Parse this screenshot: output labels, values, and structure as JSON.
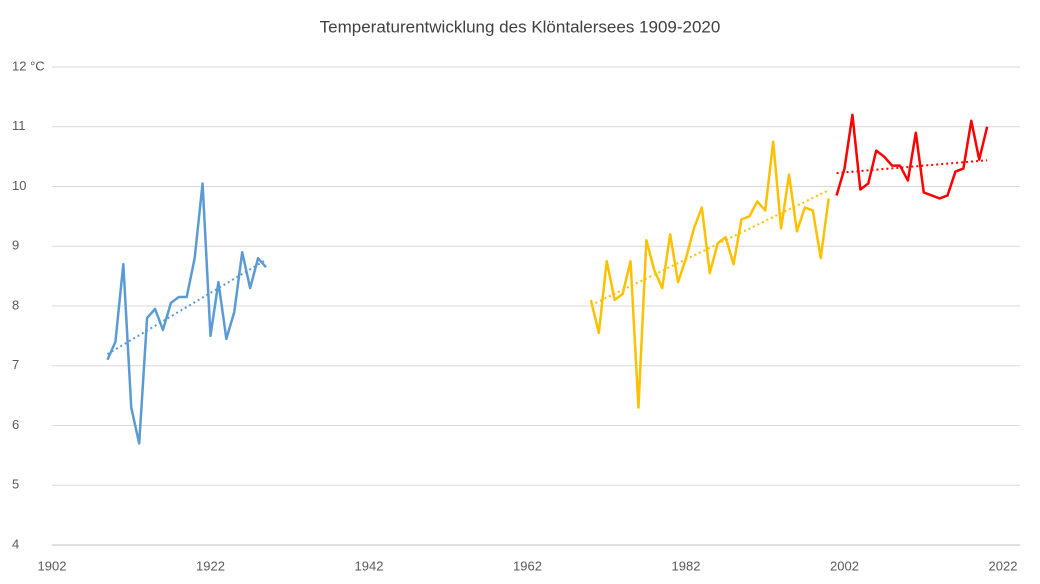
{
  "chart_data": {
    "type": "line",
    "title": "Temperaturentwicklung des Klöntalersees 1909-2020",
    "xlim": [
      1902,
      2022
    ],
    "xticks": [
      1902,
      1922,
      1942,
      1962,
      1982,
      2002,
      2022
    ],
    "ylim": [
      4,
      12
    ],
    "yticks": [
      4,
      5,
      6,
      7,
      8,
      9,
      10,
      11,
      {
        "value": 12,
        "label": "12 °C"
      }
    ],
    "grid": true,
    "trendline": true,
    "series": [
      {
        "color": "#5b9bd5",
        "x": [
          1909,
          1910,
          1911,
          1912,
          1913,
          1914,
          1915,
          1916,
          1917,
          1918,
          1919,
          1920,
          1921,
          1922,
          1923,
          1924,
          1925,
          1926,
          1927,
          1928,
          1929
        ],
        "values": [
          7.1,
          7.4,
          8.7,
          6.3,
          5.7,
          7.8,
          7.95,
          7.6,
          8.05,
          8.15,
          8.15,
          8.8,
          10.05,
          7.5,
          8.4,
          7.45,
          7.9,
          8.9,
          8.3,
          8.8,
          8.65
        ]
      },
      {
        "color": "#ffc000",
        "x": [
          1970,
          1971,
          1972,
          1973,
          1974,
          1975,
          1976,
          1977,
          1978,
          1979,
          1980,
          1981,
          1982,
          1983,
          1984,
          1985,
          1986,
          1987,
          1988,
          1989,
          1990,
          1991,
          1992,
          1993,
          1994,
          1995,
          1996,
          1997,
          1998,
          1999,
          2000
        ],
        "values": [
          8.1,
          7.55,
          8.75,
          8.1,
          8.2,
          8.75,
          6.3,
          9.1,
          8.6,
          8.3,
          9.2,
          8.4,
          8.8,
          9.3,
          9.65,
          8.55,
          9.05,
          9.15,
          8.7,
          9.45,
          9.5,
          9.75,
          9.6,
          10.75,
          9.3,
          10.2,
          9.25,
          9.65,
          9.6,
          8.8,
          9.8
        ]
      },
      {
        "color": "#ff0000",
        "x": [
          2001,
          2002,
          2003,
          2004,
          2005,
          2006,
          2007,
          2008,
          2009,
          2010,
          2011,
          2012,
          2013,
          2014,
          2015,
          2016,
          2017,
          2018,
          2019,
          2020
        ],
        "values": [
          9.85,
          10.3,
          11.2,
          9.95,
          10.05,
          10.6,
          10.5,
          10.35,
          10.35,
          10.1,
          10.9,
          9.9,
          9.85,
          9.8,
          9.85,
          10.25,
          10.3,
          11.1,
          10.45,
          11.0
        ]
      }
    ]
  }
}
